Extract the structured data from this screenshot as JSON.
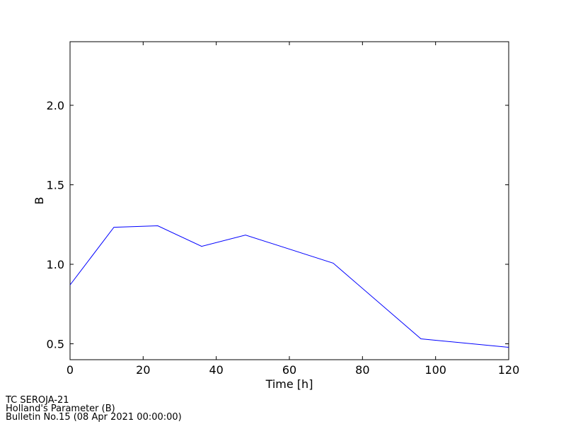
{
  "chart_data": {
    "type": "line",
    "x_label": "Time [h]",
    "y_label": "B",
    "x": [
      0,
      12,
      24,
      36,
      48,
      72,
      96,
      120
    ],
    "series": [
      {
        "color": "#0000ff",
        "values": [
          0.87,
          1.233,
          1.242,
          1.113,
          1.184,
          1.007,
          0.531,
          0.478
        ]
      }
    ],
    "xlim": [
      0,
      120
    ],
    "xticks": [
      0,
      20,
      40,
      60,
      80,
      100,
      120
    ],
    "ylim": [
      0.4,
      2.4
    ],
    "yticks": [
      0.5,
      {
        "value": 1.0,
        "label": "1.0"
      },
      1.5,
      {
        "value": 2.0,
        "label": "2.0"
      }
    ],
    "grid": false
  },
  "footer": [
    "TC SEROJA-21",
    "Holland's Parameter (B)",
    "Bulletin No.15 (08 Apr 2021  00:00:00)"
  ]
}
